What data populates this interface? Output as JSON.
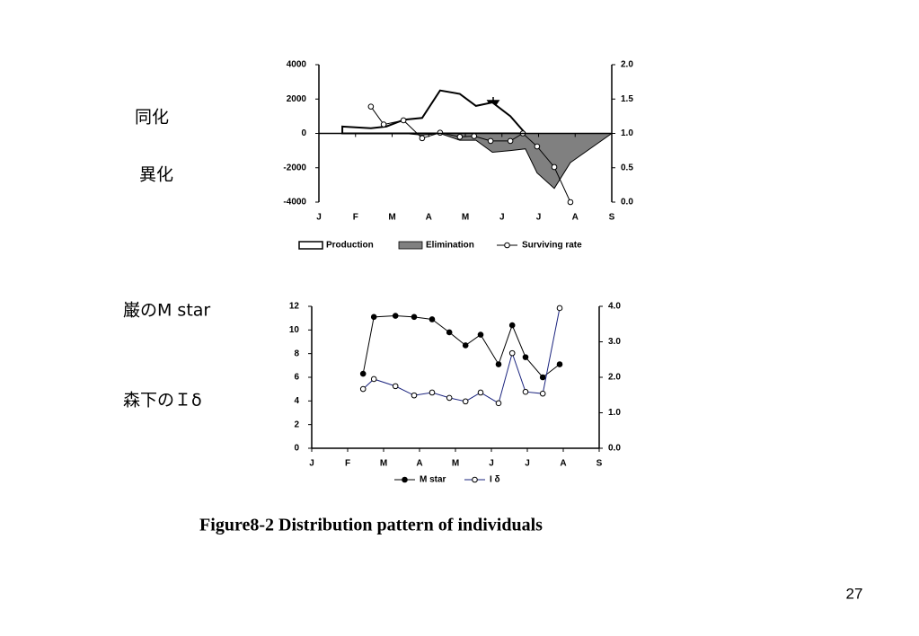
{
  "labels": [
    "同化",
    "異化",
    "巌のM star",
    "森下のＩδ"
  ],
  "caption": "Figure8-2   Distribution pattern of individuals",
  "page_number": "27",
  "chart_data": [
    {
      "type": "area",
      "xlim": [
        0,
        8
      ],
      "xticks": [
        {
          "value": 0,
          "label": "J"
        },
        {
          "value": 1,
          "label": "F"
        },
        {
          "value": 2,
          "label": "M"
        },
        {
          "value": 3,
          "label": "A"
        },
        {
          "value": 4,
          "label": "M"
        },
        {
          "value": 5,
          "label": "J"
        },
        {
          "value": 6,
          "label": "J"
        },
        {
          "value": 7,
          "label": "A"
        },
        {
          "value": 8,
          "label": "S"
        }
      ],
      "ylim": [
        -4000,
        4000
      ],
      "yticks": [
        -4000,
        -2000,
        0,
        2000,
        4000
      ],
      "y2lim": [
        0,
        2
      ],
      "y2ticks": [
        {
          "value": 0,
          "label": "0.0"
        },
        0.5,
        {
          "value": 1,
          "label": "1.0"
        },
        1.5,
        {
          "value": 2,
          "label": "2.0"
        }
      ],
      "series": [
        {
          "name": "Production",
          "type": "area",
          "color": "#ffffff",
          "x": [
            0.64,
            1.42,
            1.84,
            2.33,
            2.82,
            3.31,
            3.85,
            4.29,
            4.74,
            5.23,
            5.64
          ],
          "values": [
            400,
            300,
            400,
            800,
            900,
            2500,
            2300,
            1600,
            1800,
            1000,
            0
          ]
        },
        {
          "name": "Elimination",
          "type": "area",
          "color": "#808080",
          "x": [
            2.33,
            2.82,
            3.31,
            3.85,
            4.29,
            4.74,
            5.23,
            5.64,
            5.96,
            6.43,
            6.87,
            8
          ],
          "values": [
            0,
            -100,
            0,
            -400,
            -400,
            -1100,
            -1000,
            -900,
            -2300,
            -3200,
            -1700,
            0
          ]
        },
        {
          "name": "Surviving rate",
          "type": "line",
          "marker": "open",
          "color": "#000000",
          "axis": "y2",
          "x": [
            1.42,
            1.77,
            2.31,
            2.82,
            3.31,
            3.85,
            4.24,
            4.69,
            5.23,
            5.57,
            5.96,
            6.43,
            6.87
          ],
          "values": [
            1.39,
            1.13,
            1.19,
            0.93,
            1.01,
            0.95,
            0.96,
            0.89,
            0.89,
            1.0,
            0.81,
            0.51,
            0.0
          ]
        }
      ]
    },
    {
      "type": "line",
      "xlim": [
        0,
        8
      ],
      "xticks": [
        {
          "value": 0,
          "label": "J"
        },
        {
          "value": 1,
          "label": "F"
        },
        {
          "value": 2,
          "label": "M"
        },
        {
          "value": 3,
          "label": "A"
        },
        {
          "value": 4,
          "label": "M"
        },
        {
          "value": 5,
          "label": "J"
        },
        {
          "value": 6,
          "label": "J"
        },
        {
          "value": 7,
          "label": "A"
        },
        {
          "value": 8,
          "label": "S"
        }
      ],
      "ylim": [
        0,
        12
      ],
      "yticks": [
        0,
        2,
        4,
        6,
        8,
        10,
        12
      ],
      "y2lim": [
        0,
        4
      ],
      "y2ticks": [
        {
          "value": 0,
          "label": "0.0"
        },
        {
          "value": 1,
          "label": "1.0"
        },
        {
          "value": 2,
          "label": "2.0"
        },
        {
          "value": 3,
          "label": "3.0"
        },
        {
          "value": 4,
          "label": "4.0"
        }
      ],
      "series": [
        {
          "name": "M star",
          "type": "line",
          "marker": "filled",
          "color": "#000000",
          "x": [
            1.43,
            1.73,
            2.33,
            2.85,
            3.35,
            3.83,
            4.28,
            4.7,
            5.2,
            5.58,
            5.95,
            6.43,
            6.9
          ],
          "values": [
            6.3,
            11.1,
            11.2,
            11.1,
            10.9,
            9.8,
            8.7,
            9.6,
            7.1,
            10.4,
            7.7,
            6.0,
            7.1
          ]
        },
        {
          "name": "I δ",
          "type": "line",
          "marker": "open",
          "color": "#1a237e",
          "axis": "y2",
          "x": [
            1.43,
            1.73,
            2.33,
            2.85,
            3.35,
            3.83,
            4.28,
            4.7,
            5.2,
            5.58,
            5.95,
            6.43,
            6.9
          ],
          "values": [
            1.67,
            1.95,
            1.75,
            1.49,
            1.57,
            1.42,
            1.32,
            1.57,
            1.27,
            2.68,
            1.59,
            1.54,
            3.95
          ]
        }
      ]
    }
  ]
}
